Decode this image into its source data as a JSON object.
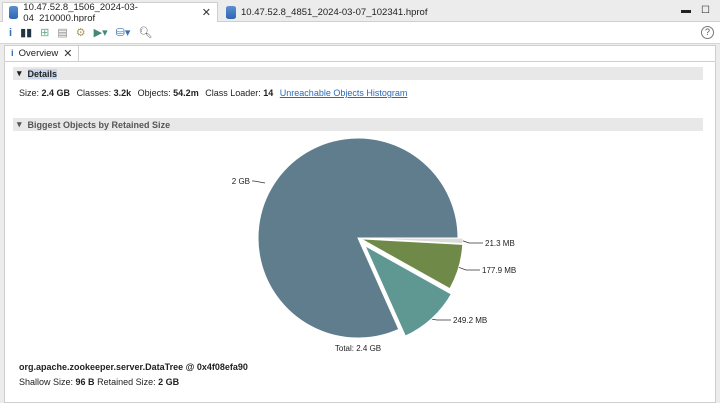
{
  "tabs": [
    {
      "label": "10.47.52.8_1506_2024-03-04_210000.hprof",
      "active": true
    },
    {
      "label": "10.47.52.8_4851_2024-03-07_102341.hprof",
      "active": false
    }
  ],
  "toolbar_icons": [
    "info-icon",
    "histogram-icon",
    "dominator-tree-icon",
    "oql-icon",
    "thread-overview-icon",
    "run-report-icon",
    "query-browser-icon",
    "search-icon"
  ],
  "panel_tab": "Overview",
  "details": {
    "title": "Details",
    "size_label": "Size:",
    "size": "2.4 GB",
    "classes_label": "Classes:",
    "classes": "3.2k",
    "objects_label": "Objects:",
    "objects": "54.2m",
    "loader_label": "Class Loader:",
    "loader": "14",
    "link": "Unreachable Objects Histogram"
  },
  "biggest": {
    "title": "Biggest Objects by Retained Size"
  },
  "chart_data": {
    "type": "pie",
    "slices": [
      {
        "label": "21.3 MB",
        "value": 21.3,
        "color": "#dcdcd8"
      },
      {
        "label": "177.9 MB",
        "value": 177.9,
        "color": "#6f8a48"
      },
      {
        "label": "249.2 MB",
        "value": 249.2,
        "color": "#5f9793"
      },
      {
        "label": "2 GB",
        "value": 2000,
        "color": "#5f7d8d"
      }
    ],
    "total_label": "Total: 2.4 GB"
  },
  "selected": {
    "name": "org.apache.zookeeper.server.DataTree @ 0x4f08efa90",
    "shallow_label": "Shallow Size:",
    "shallow": "96 B",
    "retained_label": "Retained Size:",
    "retained": "2 GB"
  }
}
